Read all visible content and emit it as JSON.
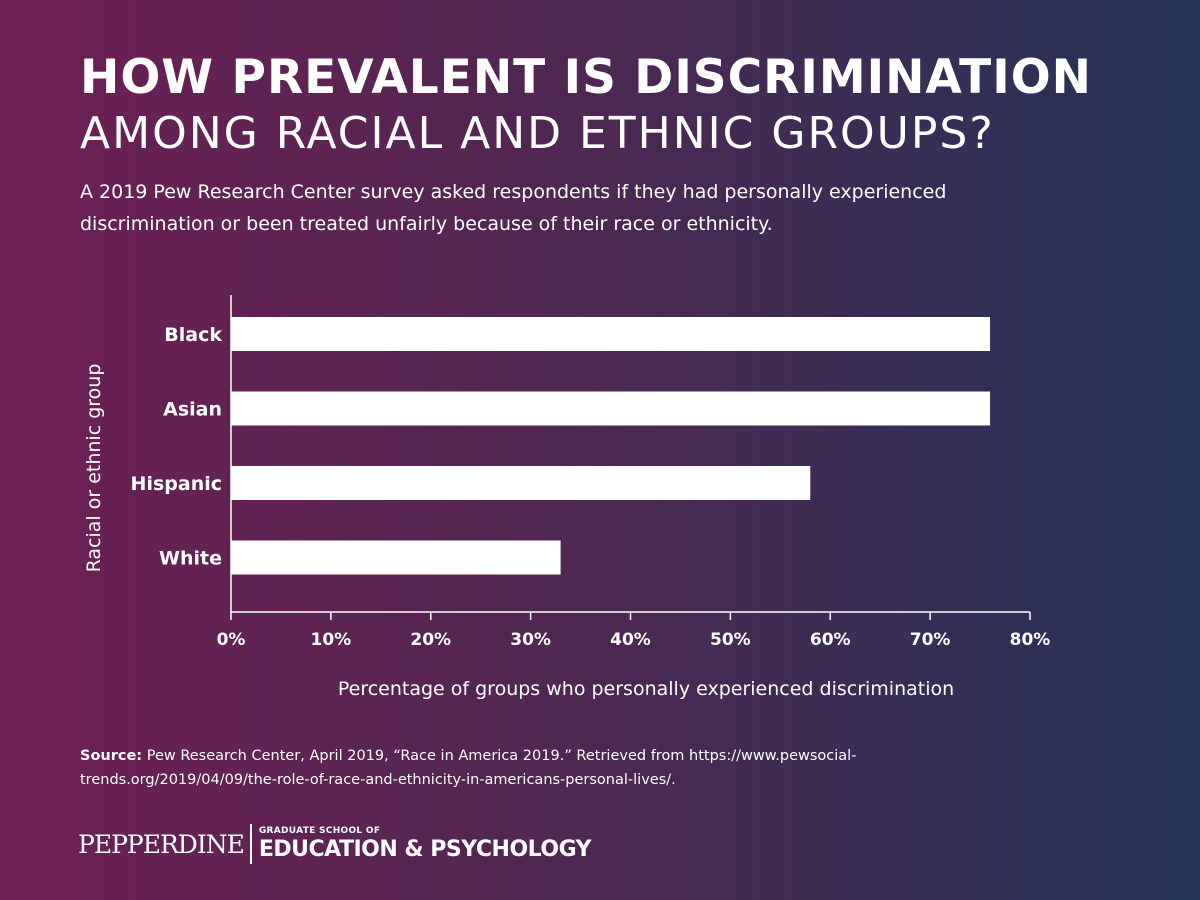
{
  "header": {
    "title_line1": "HOW PREVALENT IS DISCRIMINATION",
    "title_line2": "AMONG RACIAL AND ETHNIC GROUPS?",
    "subtitle": "A 2019 Pew Research Center survey asked respondents if they had personally experienced discrimination or been treated unfairly because of their race or ethnicity."
  },
  "chart_data": {
    "type": "bar",
    "orientation": "horizontal",
    "categories": [
      "Black",
      "Asian",
      "Hispanic",
      "White"
    ],
    "values": [
      76,
      76,
      58,
      33
    ],
    "xlabel": "Percentage of groups who personally experienced discrimination",
    "ylabel": "Racial or ethnic group",
    "xlim": [
      0,
      80
    ],
    "xticks": [
      "0%",
      "10%",
      "20%",
      "30%",
      "40%",
      "50%",
      "60%",
      "70%",
      "80%"
    ],
    "grid": false,
    "bar_color": "#ffffff"
  },
  "footer": {
    "source_label": "Source:",
    "source_text": "Pew Research Center, April 2019, “Race in America 2019.” Retrieved from https://www.pewsocial-trends.org/2019/04/09/the-role-of-race-and-ethnicity-in-americans-personal-lives/.",
    "logo_wordmark": "Pepperdine",
    "logo_line1": "GRADUATE SCHOOL OF",
    "logo_line2": "EDUCATION & PSYCHOLOGY"
  }
}
